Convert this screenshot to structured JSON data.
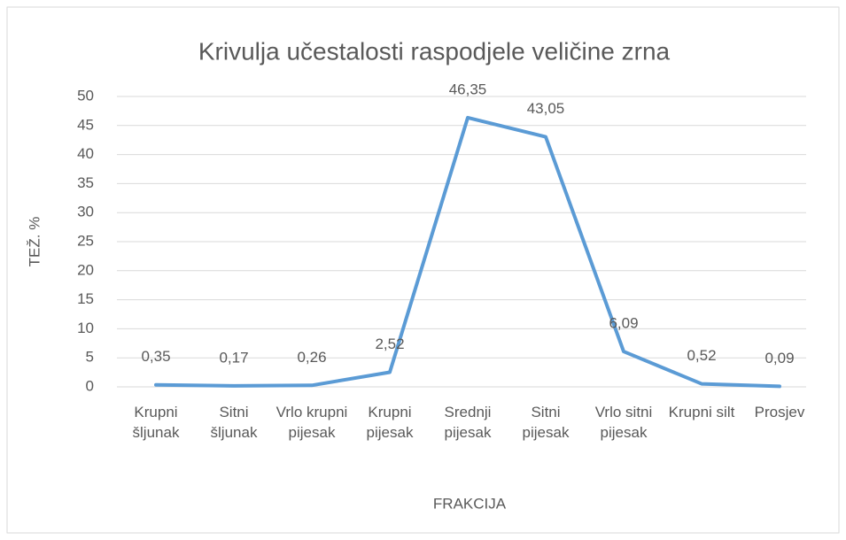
{
  "chart_data": {
    "type": "line",
    "title": "Krivulja učestalosti raspodjele veličine zrna",
    "x_label": "FRAKCIJA",
    "y_label": "TEŽ. %",
    "categories": [
      "Krupni šljunak",
      "Sitni šljunak",
      "Vrlo krupni pijesak",
      "Krupni pijesak",
      "Srednji pijesak",
      "Sitni pijesak",
      "Vrlo sitni pijesak",
      "Krupni silt",
      "Prosjev"
    ],
    "series": [
      {
        "name": "TEŽ. %",
        "color": "#5b9bd5",
        "values": [
          0.35,
          0.17,
          0.26,
          2.52,
          46.35,
          43.05,
          6.09,
          0.52,
          0.09
        ],
        "value_labels": [
          "0,35",
          "0,17",
          "0,26",
          "2,52",
          "46,35",
          "43,05",
          "6,09",
          "0,52",
          "0,09"
        ]
      }
    ],
    "ylim": [
      0,
      50
    ],
    "yticks": [
      0,
      5,
      10,
      15,
      20,
      25,
      30,
      35,
      40,
      45,
      50
    ],
    "grid": true
  }
}
